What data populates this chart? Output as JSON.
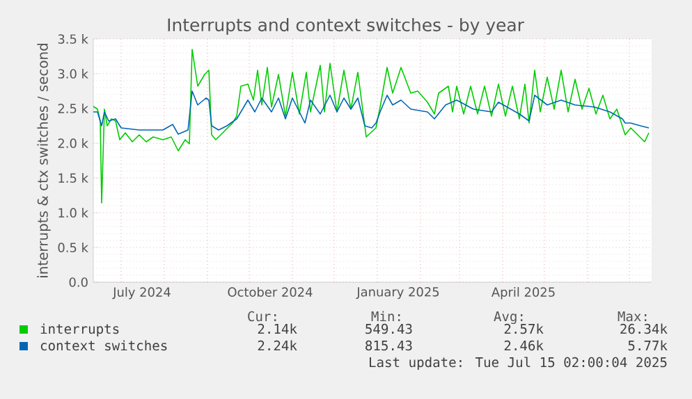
{
  "chart_data": {
    "type": "line",
    "title": "Interrupts and context switches - by year",
    "ylabel": "interrupts & ctx switches / second",
    "xlim": [
      "2024-06-11",
      "2025-07-17"
    ],
    "xticks": [
      {
        "value": "2024-07-01",
        "label": null
      },
      {
        "value": "2024-07-16",
        "label": "July 2024"
      },
      {
        "value": "2024-08-01",
        "label": null
      },
      {
        "value": "2024-09-01",
        "label": null
      },
      {
        "value": "2024-10-01",
        "label": null
      },
      {
        "value": "2024-10-16",
        "label": "October 2024"
      },
      {
        "value": "2024-11-01",
        "label": null
      },
      {
        "value": "2024-12-01",
        "label": null
      },
      {
        "value": "2025-01-01",
        "label": null
      },
      {
        "value": "2025-01-16",
        "label": "January 2025"
      },
      {
        "value": "2025-02-01",
        "label": null
      },
      {
        "value": "2025-03-01",
        "label": null
      },
      {
        "value": "2025-04-01",
        "label": null
      },
      {
        "value": "2025-04-16",
        "label": "April 2025"
      },
      {
        "value": "2025-05-01",
        "label": null
      },
      {
        "value": "2025-06-01",
        "label": null
      },
      {
        "value": "2025-07-01",
        "label": null
      }
    ],
    "ylim": [
      0,
      3500
    ],
    "yticks": [
      {
        "value": 0,
        "label": "0.0"
      },
      {
        "value": 500,
        "label": "0.5 k"
      },
      {
        "value": 1000,
        "label": "1.0 k"
      },
      {
        "value": 1500,
        "label": "1.5 k"
      },
      {
        "value": 2000,
        "label": "2.0 k"
      },
      {
        "value": 2500,
        "label": "2.5 k"
      },
      {
        "value": 3000,
        "label": "3.0 k"
      },
      {
        "value": 3500,
        "label": "3.5 k"
      }
    ],
    "grid": true,
    "legend": "bottom",
    "series": [
      {
        "name": "interrupts",
        "color": "#00cc00",
        "x": [
          "2024-06-11",
          "2024-06-14",
          "2024-06-16",
          "2024-06-17",
          "2024-06-19",
          "2024-06-21",
          "2024-06-24",
          "2024-06-27",
          "2024-06-30",
          "2024-07-04",
          "2024-07-09",
          "2024-07-14",
          "2024-07-19",
          "2024-07-24",
          "2024-07-31",
          "2024-08-06",
          "2024-08-11",
          "2024-08-16",
          "2024-08-19",
          "2024-08-21",
          "2024-08-25",
          "2024-08-30",
          "2024-09-02",
          "2024-09-04",
          "2024-09-07",
          "2024-09-12",
          "2024-09-19",
          "2024-09-22",
          "2024-09-25",
          "2024-09-30",
          "2024-10-04",
          "2024-10-07",
          "2024-10-10",
          "2024-10-14",
          "2024-10-17",
          "2024-10-22",
          "2024-10-27",
          "2024-11-01",
          "2024-11-06",
          "2024-11-11",
          "2024-11-14",
          "2024-11-21",
          "2024-11-24",
          "2024-11-28",
          "2024-12-03",
          "2024-12-08",
          "2024-12-13",
          "2024-12-18",
          "2024-12-24",
          "2024-12-31",
          "2025-01-03",
          "2025-01-08",
          "2025-01-12",
          "2025-01-18",
          "2025-01-25",
          "2025-01-30",
          "2025-02-06",
          "2025-02-11",
          "2025-02-14",
          "2025-02-21",
          "2025-02-24",
          "2025-02-27",
          "2025-03-04",
          "2025-03-09",
          "2025-03-14",
          "2025-03-19",
          "2025-03-24",
          "2025-03-29",
          "2025-04-03",
          "2025-04-08",
          "2025-04-13",
          "2025-04-17",
          "2025-04-20",
          "2025-04-24",
          "2025-04-28",
          "2025-05-03",
          "2025-05-08",
          "2025-05-13",
          "2025-05-18",
          "2025-05-23",
          "2025-05-28",
          "2025-06-02",
          "2025-06-07",
          "2025-06-12",
          "2025-06-17",
          "2025-06-22",
          "2025-06-28",
          "2025-07-02",
          "2025-07-07",
          "2025-07-12",
          "2025-07-15"
        ],
        "values": [
          2530,
          2490,
          2320,
          1140,
          2490,
          2250,
          2350,
          2320,
          2050,
          2150,
          2020,
          2120,
          2020,
          2090,
          2050,
          2090,
          1890,
          2050,
          1990,
          3350,
          2820,
          2990,
          3050,
          2120,
          2050,
          2150,
          2290,
          2390,
          2820,
          2850,
          2620,
          3050,
          2550,
          3090,
          2520,
          2990,
          2390,
          3020,
          2420,
          3020,
          2450,
          3120,
          2450,
          3150,
          2450,
          3050,
          2490,
          3020,
          2090,
          2220,
          2520,
          3090,
          2720,
          3090,
          2720,
          2750,
          2590,
          2420,
          2720,
          2820,
          2450,
          2820,
          2420,
          2820,
          2420,
          2820,
          2390,
          2850,
          2390,
          2820,
          2350,
          2850,
          2290,
          3050,
          2450,
          2950,
          2490,
          3050,
          2450,
          2920,
          2490,
          2790,
          2420,
          2690,
          2350,
          2490,
          2120,
          2220,
          2120,
          2020,
          2150
        ]
      },
      {
        "name": "context switches",
        "color": "#0066b3",
        "x": [
          "2024-06-11",
          "2024-06-14",
          "2024-06-17",
          "2024-06-19",
          "2024-06-22",
          "2024-06-27",
          "2024-07-01",
          "2024-07-14",
          "2024-07-31",
          "2024-08-07",
          "2024-08-11",
          "2024-08-18",
          "2024-08-21",
          "2024-08-25",
          "2024-08-31",
          "2024-09-02",
          "2024-09-04",
          "2024-09-09",
          "2024-09-15",
          "2024-09-22",
          "2024-09-25",
          "2024-09-30",
          "2024-10-05",
          "2024-10-10",
          "2024-10-17",
          "2024-10-22",
          "2024-10-27",
          "2024-11-01",
          "2024-11-10",
          "2024-11-14",
          "2024-11-21",
          "2024-11-28",
          "2024-12-03",
          "2024-12-08",
          "2024-12-13",
          "2024-12-18",
          "2024-12-23",
          "2024-12-28",
          "2024-12-31",
          "2025-01-03",
          "2025-01-08",
          "2025-01-12",
          "2025-01-18",
          "2025-01-25",
          "2025-02-06",
          "2025-02-11",
          "2025-02-19",
          "2025-02-27",
          "2025-03-11",
          "2025-03-24",
          "2025-03-29",
          "2025-04-13",
          "2025-04-20",
          "2025-04-24",
          "2025-05-03",
          "2025-05-13",
          "2025-05-23",
          "2025-06-06",
          "2025-06-17",
          "2025-06-26",
          "2025-06-28",
          "2025-07-02",
          "2025-07-09",
          "2025-07-15"
        ],
        "values": [
          2450,
          2450,
          2250,
          2450,
          2320,
          2350,
          2220,
          2190,
          2190,
          2270,
          2130,
          2190,
          2750,
          2550,
          2650,
          2620,
          2250,
          2190,
          2250,
          2350,
          2450,
          2620,
          2450,
          2650,
          2450,
          2650,
          2350,
          2650,
          2290,
          2620,
          2420,
          2690,
          2450,
          2650,
          2490,
          2650,
          2250,
          2220,
          2290,
          2450,
          2690,
          2550,
          2620,
          2490,
          2450,
          2350,
          2550,
          2620,
          2490,
          2450,
          2590,
          2420,
          2320,
          2690,
          2550,
          2620,
          2550,
          2520,
          2450,
          2350,
          2290,
          2290,
          2250,
          2220
        ]
      }
    ],
    "annotations": [
      "Cur:",
      "Min:",
      "Avg:",
      "Max:",
      "2.14k",
      "549.43",
      "2.57k",
      "26.34k",
      "2.24k",
      "815.43",
      "2.46k",
      "5.77k",
      "Last update: Tue Jul 15 02:00:04 2025"
    ]
  }
}
